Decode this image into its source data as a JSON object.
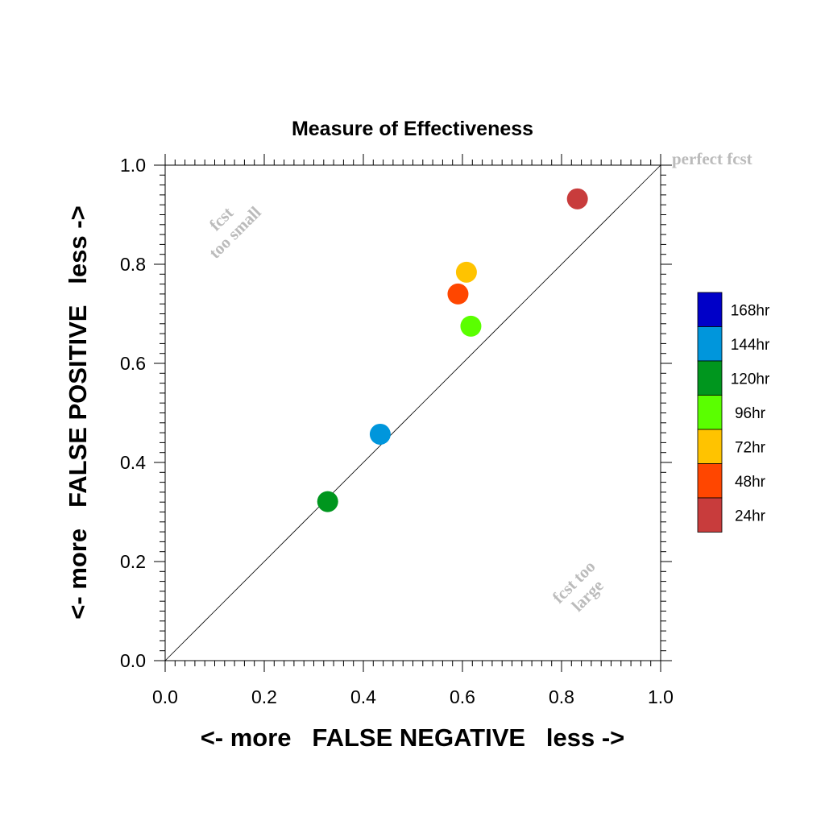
{
  "chart_data": {
    "type": "scatter",
    "title": "Measure of Effectiveness",
    "xlabel": "<- more   FALSE NEGATIVE   less ->",
    "ylabel": "<- more   FALSE POSITIVE   less ->",
    "xlim": [
      0.0,
      1.0
    ],
    "ylim": [
      0.0,
      1.0
    ],
    "xticks": [
      "0.0",
      "0.2",
      "0.4",
      "0.6",
      "0.8",
      "1.0"
    ],
    "yticks": [
      "0.0",
      "0.2",
      "0.4",
      "0.6",
      "0.8",
      "1.0"
    ],
    "grid": false,
    "legend_position": "right",
    "diagonal_reference_line": true,
    "annotations": {
      "top_right": "perfect fcst",
      "upper_left_line1": "fcst",
      "upper_left_line2": "too small",
      "lower_right_line1": "fcst too",
      "lower_right_line2": "large"
    },
    "legend": [
      {
        "name": "168hr",
        "color": "#0000c8"
      },
      {
        "name": "144hr",
        "color": "#0096dc"
      },
      {
        "name": "120hr",
        "color": "#00961e"
      },
      {
        "name": "96hr",
        "color": "#5aff00"
      },
      {
        "name": "72hr",
        "color": "#ffc300"
      },
      {
        "name": "48hr",
        "color": "#ff4600"
      },
      {
        "name": "24hr",
        "color": "#c83c3c"
      }
    ],
    "points": [
      {
        "series": "24hr",
        "x": 0.832,
        "y": 0.932,
        "color": "#c83c3c"
      },
      {
        "series": "48hr",
        "x": 0.591,
        "y": 0.74,
        "color": "#ff4600"
      },
      {
        "series": "72hr",
        "x": 0.608,
        "y": 0.784,
        "color": "#ffc300"
      },
      {
        "series": "96hr",
        "x": 0.617,
        "y": 0.675,
        "color": "#5aff00"
      },
      {
        "series": "120hr",
        "x": 0.328,
        "y": 0.321,
        "color": "#00961e"
      },
      {
        "series": "144hr",
        "x": 0.434,
        "y": 0.457,
        "color": "#0096dc"
      }
    ]
  }
}
